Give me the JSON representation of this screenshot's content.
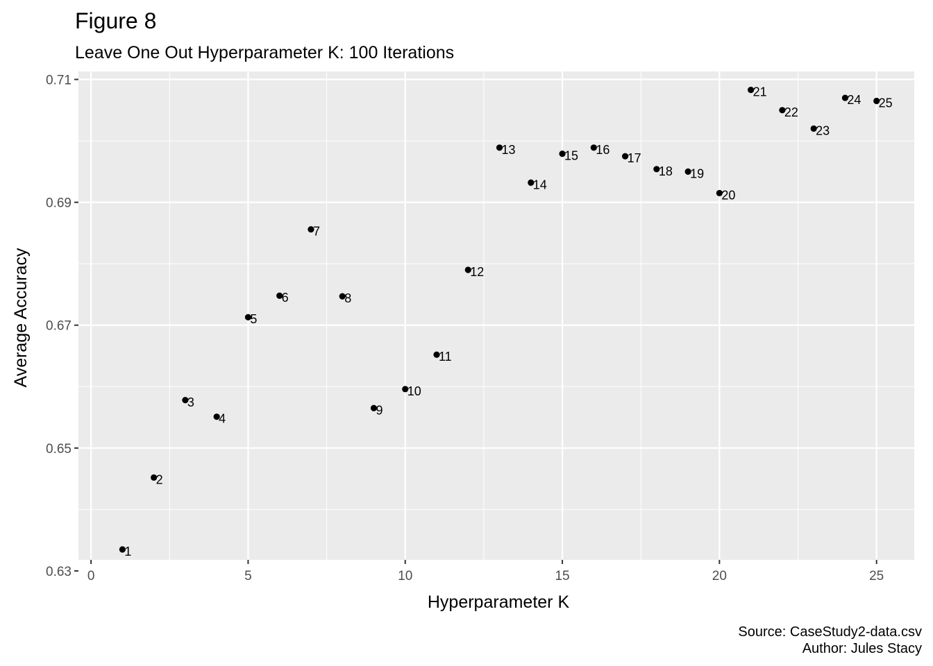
{
  "chart_data": {
    "type": "scatter",
    "title": "Figure 8",
    "subtitle": "Leave One Out Hyperparameter K: 100 Iterations",
    "xlabel": "Hyperparameter K",
    "ylabel": "Average Accuracy",
    "xlim": [
      -0.4,
      26.2
    ],
    "ylim": [
      0.6318,
      0.7113
    ],
    "x_ticks": [
      0,
      5,
      10,
      15,
      20,
      25
    ],
    "y_ticks": [
      0.63,
      0.65,
      0.67,
      0.69,
      0.71
    ],
    "y_tick_labels": [
      "0.63",
      "0.65",
      "0.67",
      "0.69",
      "0.71"
    ],
    "grid": true,
    "points": [
      {
        "x": 1,
        "y": 0.6335,
        "label": "1"
      },
      {
        "x": 2,
        "y": 0.6452,
        "label": "2"
      },
      {
        "x": 3,
        "y": 0.6578,
        "label": "3"
      },
      {
        "x": 4,
        "y": 0.6551,
        "label": "4"
      },
      {
        "x": 5,
        "y": 0.6713,
        "label": "5"
      },
      {
        "x": 6,
        "y": 0.6748,
        "label": "6"
      },
      {
        "x": 7,
        "y": 0.6856,
        "label": "7"
      },
      {
        "x": 8,
        "y": 0.6747,
        "label": "8"
      },
      {
        "x": 9,
        "y": 0.6565,
        "label": "9"
      },
      {
        "x": 10,
        "y": 0.6596,
        "label": "10"
      },
      {
        "x": 11,
        "y": 0.6652,
        "label": "11"
      },
      {
        "x": 12,
        "y": 0.679,
        "label": "12"
      },
      {
        "x": 13,
        "y": 0.6989,
        "label": "13"
      },
      {
        "x": 14,
        "y": 0.6932,
        "label": "14"
      },
      {
        "x": 15,
        "y": 0.6979,
        "label": "15"
      },
      {
        "x": 16,
        "y": 0.6989,
        "label": "16"
      },
      {
        "x": 17,
        "y": 0.6975,
        "label": "17"
      },
      {
        "x": 18,
        "y": 0.6954,
        "label": "18"
      },
      {
        "x": 19,
        "y": 0.695,
        "label": "19"
      },
      {
        "x": 20,
        "y": 0.6915,
        "label": "20"
      },
      {
        "x": 21,
        "y": 0.7083,
        "label": "21"
      },
      {
        "x": 22,
        "y": 0.705,
        "label": "22"
      },
      {
        "x": 23,
        "y": 0.702,
        "label": "23"
      },
      {
        "x": 24,
        "y": 0.707,
        "label": "24"
      },
      {
        "x": 25,
        "y": 0.7065,
        "label": "25"
      }
    ],
    "caption_lines": [
      "Source: CaseStudy2-data.csv",
      "Author: Jules Stacy"
    ],
    "colors": {
      "panel_background": "#ebebeb",
      "grid_major": "#ffffff",
      "point": "#000000",
      "tick_label": "#4d4d4d"
    }
  }
}
